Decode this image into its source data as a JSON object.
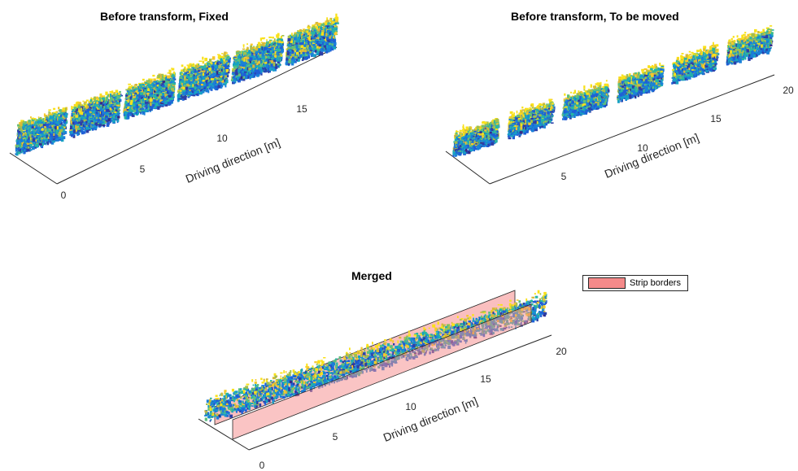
{
  "chart_data": [
    {
      "type": "scatter",
      "subtype": "3d-point-cloud",
      "title": "Before transform, Fixed",
      "xlabel": "Driving direction [m]",
      "x_ticks": [
        "0",
        "5",
        "10",
        "15"
      ],
      "x_range": [
        0,
        18
      ],
      "strips": 6,
      "colormap": "parula"
    },
    {
      "type": "scatter",
      "subtype": "3d-point-cloud",
      "title": "Before transform, To be moved",
      "xlabel": "Driving direction [m]",
      "x_ticks": [
        "5",
        "10",
        "15",
        "20"
      ],
      "x_range": [
        0,
        20
      ],
      "strips": 6,
      "colormap": "parula"
    },
    {
      "type": "scatter",
      "subtype": "3d-point-cloud",
      "title": "Merged",
      "xlabel": "Driving direction [m]",
      "x_ticks": [
        "0",
        "5",
        "10",
        "15",
        "20"
      ],
      "x_range": [
        0,
        20
      ],
      "colormap": "parula",
      "legend": {
        "entries": [
          "Strip borders"
        ],
        "color": "#f58a8a",
        "placement": "right"
      }
    }
  ]
}
